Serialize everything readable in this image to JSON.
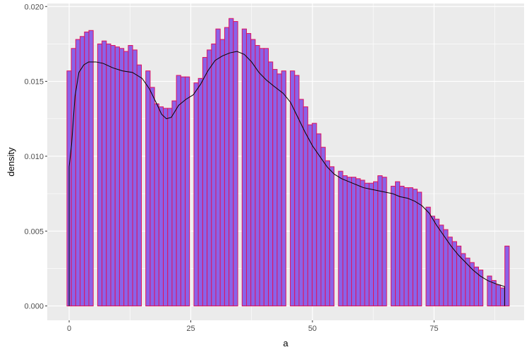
{
  "chart_data": {
    "type": "bar",
    "subtype": "histogram-with-density",
    "title": "",
    "xlabel": "a",
    "ylabel": "density",
    "xlim": [
      -4.5,
      93.5
    ],
    "ylim": [
      -0.00096,
      0.0202
    ],
    "x_ticks": [
      0,
      25,
      50,
      75
    ],
    "x_tick_labels": [
      "0",
      "25",
      "50",
      "75"
    ],
    "y_ticks": [
      0.0,
      0.005,
      0.01,
      0.015,
      0.02
    ],
    "y_tick_labels": [
      "0.000",
      "0.005",
      "0.010",
      "0.015",
      "0.020"
    ],
    "grid": true,
    "panel_background": "#ebebeb",
    "grid_color": "#ffffff",
    "bar_fill": "#8a63e8",
    "bar_outline": "#e0115f",
    "density_line_color": "#000000",
    "bin_width": 0.9,
    "bins": [
      [
        0,
        0.0157
      ],
      [
        0.9,
        0.0172
      ],
      [
        1.8,
        0.0178
      ],
      [
        2.7,
        0.018
      ],
      [
        3.6,
        0.0183
      ],
      [
        4.5,
        0.0184
      ],
      [
        5.4,
        0.0
      ],
      [
        6.3,
        0.0175
      ],
      [
        7.2,
        0.0177
      ],
      [
        8.1,
        0.0175
      ],
      [
        9.0,
        0.0174
      ],
      [
        9.9,
        0.0173
      ],
      [
        10.8,
        0.0172
      ],
      [
        11.7,
        0.017
      ],
      [
        12.6,
        0.0174
      ],
      [
        13.5,
        0.0171
      ],
      [
        14.4,
        0.0161
      ],
      [
        15.3,
        0.0
      ],
      [
        16.2,
        0.0157
      ],
      [
        17.1,
        0.0146
      ],
      [
        18.0,
        0.0135
      ],
      [
        18.9,
        0.0133
      ],
      [
        19.8,
        0.0132
      ],
      [
        20.7,
        0.0132
      ],
      [
        21.6,
        0.0137
      ],
      [
        22.5,
        0.0154
      ],
      [
        23.4,
        0.0153
      ],
      [
        24.3,
        0.0153
      ],
      [
        25.2,
        0.0
      ],
      [
        26.1,
        0.0149
      ],
      [
        27.0,
        0.0152
      ],
      [
        27.9,
        0.0166
      ],
      [
        28.8,
        0.0171
      ],
      [
        29.7,
        0.0175
      ],
      [
        30.6,
        0.0185
      ],
      [
        31.5,
        0.0178
      ],
      [
        32.4,
        0.0186
      ],
      [
        33.3,
        0.0192
      ],
      [
        34.2,
        0.019
      ],
      [
        35.1,
        0.0
      ],
      [
        36.0,
        0.0185
      ],
      [
        36.9,
        0.0182
      ],
      [
        37.8,
        0.0178
      ],
      [
        38.7,
        0.0174
      ],
      [
        39.6,
        0.0172
      ],
      [
        40.5,
        0.0172
      ],
      [
        41.4,
        0.0163
      ],
      [
        42.3,
        0.0158
      ],
      [
        43.2,
        0.0155
      ],
      [
        44.1,
        0.0157
      ],
      [
        45.0,
        0.0
      ],
      [
        45.9,
        0.0157
      ],
      [
        46.8,
        0.0154
      ],
      [
        47.7,
        0.0138
      ],
      [
        48.6,
        0.0133
      ],
      [
        49.5,
        0.0121
      ],
      [
        50.4,
        0.0122
      ],
      [
        51.3,
        0.0115
      ],
      [
        52.2,
        0.0106
      ],
      [
        53.1,
        0.0097
      ],
      [
        54.0,
        0.0093
      ],
      [
        54.9,
        0.0
      ],
      [
        55.8,
        0.009
      ],
      [
        56.7,
        0.0087
      ],
      [
        57.6,
        0.0086
      ],
      [
        58.5,
        0.0086
      ],
      [
        59.4,
        0.0085
      ],
      [
        60.3,
        0.0084
      ],
      [
        61.2,
        0.0082
      ],
      [
        62.1,
        0.0082
      ],
      [
        63.0,
        0.0083
      ],
      [
        63.9,
        0.0087
      ],
      [
        64.8,
        0.0086
      ],
      [
        65.7,
        0.0
      ],
      [
        66.6,
        0.008
      ],
      [
        67.5,
        0.0083
      ],
      [
        68.4,
        0.008
      ],
      [
        69.3,
        0.0079
      ],
      [
        70.2,
        0.0079
      ],
      [
        71.1,
        0.0078
      ],
      [
        72.0,
        0.0076
      ],
      [
        72.9,
        0.0
      ],
      [
        73.8,
        0.0066
      ],
      [
        74.7,
        0.006
      ],
      [
        75.6,
        0.0058
      ],
      [
        76.5,
        0.0054
      ],
      [
        77.4,
        0.0051
      ],
      [
        78.3,
        0.0046
      ],
      [
        79.2,
        0.0043
      ],
      [
        80.1,
        0.004
      ],
      [
        81.0,
        0.0035
      ],
      [
        81.9,
        0.0032
      ],
      [
        82.8,
        0.0029
      ],
      [
        83.7,
        0.0026
      ],
      [
        84.6,
        0.0024
      ],
      [
        85.5,
        0.0
      ],
      [
        86.4,
        0.002
      ],
      [
        87.3,
        0.0017
      ],
      [
        88.2,
        0.0014
      ],
      [
        89.1,
        0.0012
      ],
      [
        90.0,
        0.004
      ]
    ],
    "density_curve": [
      [
        0,
        0.0093
      ],
      [
        0.5,
        0.0108
      ],
      [
        1.2,
        0.014
      ],
      [
        2.0,
        0.0156
      ],
      [
        3.0,
        0.0161
      ],
      [
        4.0,
        0.0163
      ],
      [
        5.5,
        0.0163
      ],
      [
        7.0,
        0.0162
      ],
      [
        9.0,
        0.0159
      ],
      [
        11.0,
        0.0157
      ],
      [
        13.0,
        0.0156
      ],
      [
        15.0,
        0.0152
      ],
      [
        16.5,
        0.0145
      ],
      [
        18.0,
        0.0135
      ],
      [
        19.0,
        0.0128
      ],
      [
        20.0,
        0.0125
      ],
      [
        21.0,
        0.0126
      ],
      [
        22.5,
        0.0134
      ],
      [
        24.0,
        0.0138
      ],
      [
        25.5,
        0.0141
      ],
      [
        27.0,
        0.0148
      ],
      [
        28.5,
        0.0157
      ],
      [
        30.0,
        0.0164
      ],
      [
        31.5,
        0.0167
      ],
      [
        33.0,
        0.0169
      ],
      [
        34.5,
        0.017
      ],
      [
        36.0,
        0.0168
      ],
      [
        37.5,
        0.0163
      ],
      [
        39.0,
        0.0156
      ],
      [
        40.5,
        0.0151
      ],
      [
        42.0,
        0.0147
      ],
      [
        44.0,
        0.0142
      ],
      [
        45.5,
        0.0136
      ],
      [
        47.0,
        0.0126
      ],
      [
        48.5,
        0.0116
      ],
      [
        50.0,
        0.0107
      ],
      [
        51.5,
        0.01
      ],
      [
        53.0,
        0.0093
      ],
      [
        54.5,
        0.0088
      ],
      [
        56.0,
        0.0085
      ],
      [
        57.5,
        0.0083
      ],
      [
        59.0,
        0.0081
      ],
      [
        60.5,
        0.0079
      ],
      [
        62.0,
        0.0078
      ],
      [
        63.5,
        0.0077
      ],
      [
        65.0,
        0.0076
      ],
      [
        66.5,
        0.0075
      ],
      [
        68.0,
        0.0073
      ],
      [
        69.5,
        0.0072
      ],
      [
        71.0,
        0.007
      ],
      [
        72.5,
        0.0067
      ],
      [
        74.0,
        0.0062
      ],
      [
        75.5,
        0.0054
      ],
      [
        77.0,
        0.0047
      ],
      [
        78.5,
        0.004
      ],
      [
        80.0,
        0.0034
      ],
      [
        81.5,
        0.0029
      ],
      [
        83.0,
        0.0024
      ],
      [
        84.5,
        0.002
      ],
      [
        86.0,
        0.0017
      ],
      [
        87.5,
        0.0015
      ],
      [
        88.5,
        0.0014
      ],
      [
        89.5,
        0.0013
      ]
    ]
  }
}
